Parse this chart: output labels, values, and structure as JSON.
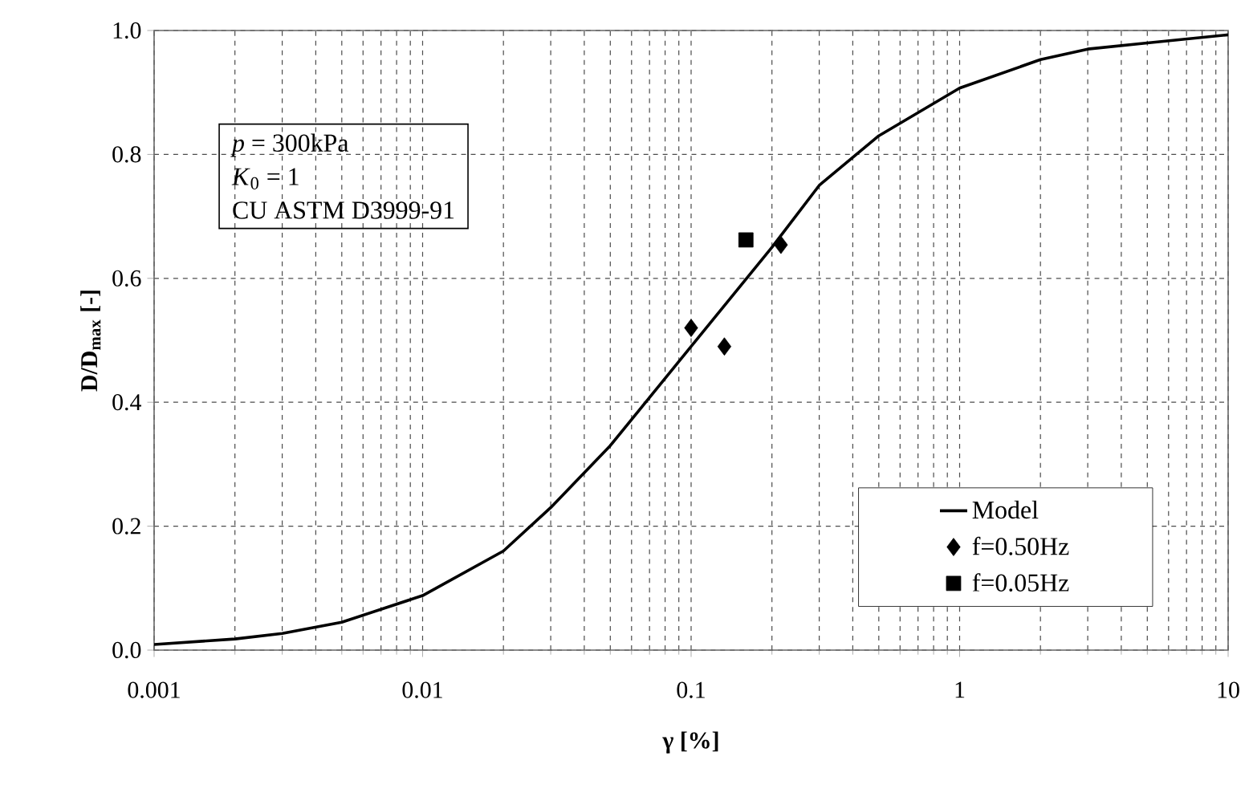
{
  "chart_data": {
    "type": "line",
    "xlabel": "γ [%]",
    "ylabel": "D/D$_{max}$ [-]",
    "log": "x",
    "xlim": [
      0.001,
      10
    ],
    "xticks": [
      0.001,
      0.01,
      0.1,
      1,
      10
    ],
    "ylim": [
      0,
      1
    ],
    "yticks": [
      {
        "value": 0,
        "label": "0.0"
      },
      {
        "value": 0.2,
        "label": "0.2"
      },
      {
        "value": 0.4,
        "label": "0.4"
      },
      {
        "value": 0.6,
        "label": "0.6"
      },
      {
        "value": 0.8,
        "label": "0.8"
      },
      {
        "value": 1,
        "label": "1.0"
      }
    ],
    "grid": true,
    "legend": "bottom right",
    "annotations": [
      "*p* = 300kPa",
      "*K*$_{0}$ = 1",
      "CU ASTM D3999-91"
    ],
    "series": [
      {
        "name": "Model",
        "color": "#000000",
        "marker": "none",
        "line_style": "solid",
        "x": [
          0.001,
          0.002,
          0.003,
          0.005,
          0.01,
          0.02,
          0.03,
          0.05,
          0.1,
          0.2,
          0.3,
          0.5,
          1,
          2,
          3,
          5,
          10
        ],
        "values": [
          0.009,
          0.018,
          0.027,
          0.045,
          0.088,
          0.16,
          0.23,
          0.33,
          0.49,
          0.65,
          0.75,
          0.83,
          0.907,
          0.953,
          0.97,
          0.98,
          0.993
        ]
      },
      {
        "name": "f=0.50Hz",
        "type": "scatter",
        "color": "#000000",
        "marker": "diamond",
        "x": [
          0.1,
          0.133,
          0.216
        ],
        "values": [
          0.52,
          0.49,
          0.654
        ]
      },
      {
        "name": "f=0.05Hz",
        "type": "scatter",
        "color": "#000000",
        "marker": "square",
        "x": [
          0.16
        ],
        "values": [
          0.662
        ]
      }
    ]
  }
}
